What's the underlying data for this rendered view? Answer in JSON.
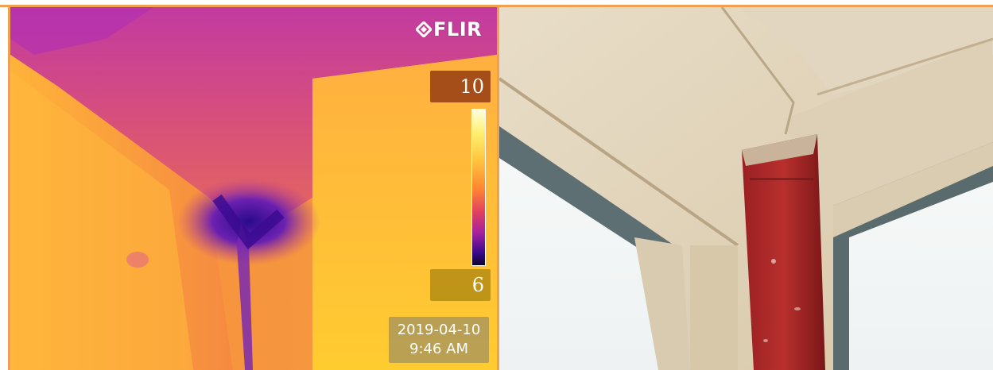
{
  "thermal_panel": {
    "brand": "FLIR",
    "scale_max": "10",
    "scale_min": "6",
    "date": "2019-04-10",
    "time": "9:46 AM"
  },
  "colors": {
    "frame": "#f0a050"
  },
  "icons": {
    "brand_mark": "flir-diamond-icon"
  }
}
